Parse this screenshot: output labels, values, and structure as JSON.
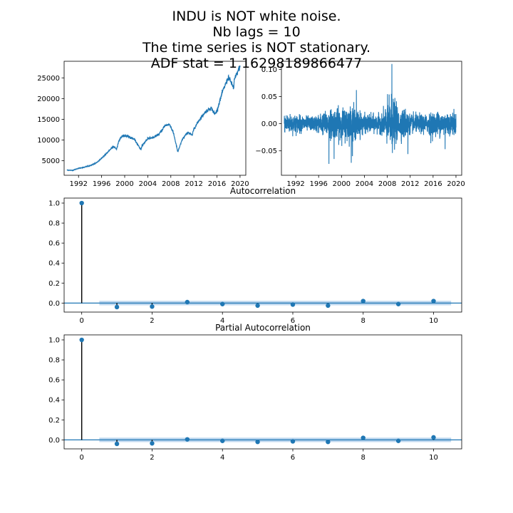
{
  "figure": {
    "title_lines": [
      "INDU is NOT white noise.",
      "Nb lags = 10",
      "The time series is NOT stationary.",
      "ADF stat = 1.16298189866477"
    ]
  },
  "colors": {
    "series": "#1f77b4",
    "band": "#a6c8e8",
    "stem": "#000000",
    "axis": "#000000"
  },
  "chart_data": [
    {
      "type": "line",
      "title": "",
      "xlim": [
        1989.5,
        2021.0
      ],
      "ylim": [
        1500,
        29000
      ],
      "xticks": [
        1992,
        1996,
        2000,
        2004,
        2008,
        2012,
        2016,
        2020
      ],
      "yticks": [
        5000,
        10000,
        15000,
        20000,
        25000
      ],
      "xtick_labels": [
        "1992",
        "1996",
        "2000",
        "2004",
        "2008",
        "2012",
        "2016",
        "2020"
      ],
      "ytick_labels": [
        "5000",
        "10000",
        "15000",
        "20000",
        "25000"
      ],
      "x": [
        1990.0,
        1991.0,
        1992.0,
        1993.0,
        1994.0,
        1995.0,
        1996.0,
        1997.0,
        1998.0,
        1998.6,
        1999.0,
        1999.5,
        2000.0,
        2000.5,
        2001.0,
        2001.7,
        2002.0,
        2002.8,
        2003.0,
        2004.0,
        2005.0,
        2006.0,
        2007.0,
        2007.8,
        2008.5,
        2009.2,
        2010.0,
        2011.0,
        2011.7,
        2012.0,
        2013.0,
        2014.0,
        2015.0,
        2015.6,
        2016.0,
        2017.0,
        2018.0,
        2018.9,
        2019.0,
        2020.0
      ],
      "y": [
        2750,
        2700,
        3200,
        3450,
        3800,
        4400,
        5600,
        7000,
        8500,
        7800,
        9900,
        10900,
        11000,
        11000,
        10500,
        10200,
        9500,
        7700,
        8600,
        10400,
        10600,
        11500,
        13500,
        13800,
        11500,
        7100,
        10200,
        11900,
        11100,
        12700,
        15000,
        16800,
        17800,
        16200,
        17100,
        21800,
        25200,
        22500,
        24500,
        27800
      ]
    },
    {
      "type": "line",
      "title": "",
      "xlim": [
        1989.5,
        2021.0
      ],
      "ylim": [
        -0.095,
        0.115
      ],
      "xticks": [
        1992,
        1996,
        2000,
        2004,
        2008,
        2012,
        2016,
        2020
      ],
      "yticks": [
        -0.05,
        0.0,
        0.05,
        0.1
      ],
      "xtick_labels": [
        "1992",
        "1996",
        "2000",
        "2004",
        "2008",
        "2012",
        "2016",
        "2020"
      ],
      "ytick_labels": [
        "−0.05",
        "0.00",
        "0.05",
        "0.10"
      ],
      "volatility_profile": {
        "x": [
          1990,
          1995,
          1997,
          1998.5,
          2000,
          2002,
          2003,
          2004,
          2007,
          2008,
          2008.8,
          2009.5,
          2010,
          2011,
          2012,
          2015,
          2016,
          2018,
          2019,
          2020
        ],
        "sd": [
          0.009,
          0.006,
          0.01,
          0.013,
          0.013,
          0.016,
          0.011,
          0.008,
          0.008,
          0.018,
          0.025,
          0.017,
          0.011,
          0.014,
          0.008,
          0.008,
          0.01,
          0.011,
          0.009,
          0.01
        ]
      },
      "extremes": [
        {
          "x": 2008.8,
          "y": 0.11
        },
        {
          "x": 2008.8,
          "y": -0.082
        },
        {
          "x": 2001.7,
          "y": -0.072
        },
        {
          "x": 1997.8,
          "y": -0.074
        },
        {
          "x": 2011.6,
          "y": -0.056
        },
        {
          "x": 2015.6,
          "y": -0.036
        },
        {
          "x": 2018.1,
          "y": -0.047
        },
        {
          "x": 2002.6,
          "y": 0.062
        },
        {
          "x": 1998.7,
          "y": -0.065
        }
      ]
    },
    {
      "type": "stem",
      "title": "Autocorrelation",
      "xlim": [
        -0.5,
        10.8
      ],
      "ylim": [
        -0.09,
        1.05
      ],
      "xticks": [
        0,
        2,
        4,
        6,
        8,
        10
      ],
      "yticks": [
        0.0,
        0.2,
        0.4,
        0.6,
        0.8,
        1.0
      ],
      "xtick_labels": [
        "0",
        "2",
        "4",
        "6",
        "8",
        "10"
      ],
      "ytick_labels": [
        "0.0",
        "0.2",
        "0.4",
        "0.6",
        "0.8",
        "1.0"
      ],
      "lags": [
        0,
        1,
        2,
        3,
        4,
        5,
        6,
        7,
        8,
        9,
        10
      ],
      "values": [
        1.0,
        -0.04,
        -0.035,
        0.01,
        -0.01,
        -0.025,
        -0.015,
        -0.025,
        0.02,
        -0.01,
        0.02
      ],
      "confidence_band": 0.022
    },
    {
      "type": "stem",
      "title": "Partial Autocorrelation",
      "xlim": [
        -0.5,
        10.8
      ],
      "ylim": [
        -0.09,
        1.05
      ],
      "xticks": [
        0,
        2,
        4,
        6,
        8,
        10
      ],
      "yticks": [
        0.0,
        0.2,
        0.4,
        0.6,
        0.8,
        1.0
      ],
      "xtick_labels": [
        "0",
        "2",
        "4",
        "6",
        "8",
        "10"
      ],
      "ytick_labels": [
        "0.0",
        "0.2",
        "0.4",
        "0.6",
        "0.8",
        "1.0"
      ],
      "lags": [
        0,
        1,
        2,
        3,
        4,
        5,
        6,
        7,
        8,
        9,
        10
      ],
      "values": [
        1.0,
        -0.04,
        -0.035,
        0.005,
        -0.01,
        -0.02,
        -0.015,
        -0.02,
        0.02,
        -0.01,
        0.025
      ],
      "confidence_band": 0.022
    }
  ]
}
